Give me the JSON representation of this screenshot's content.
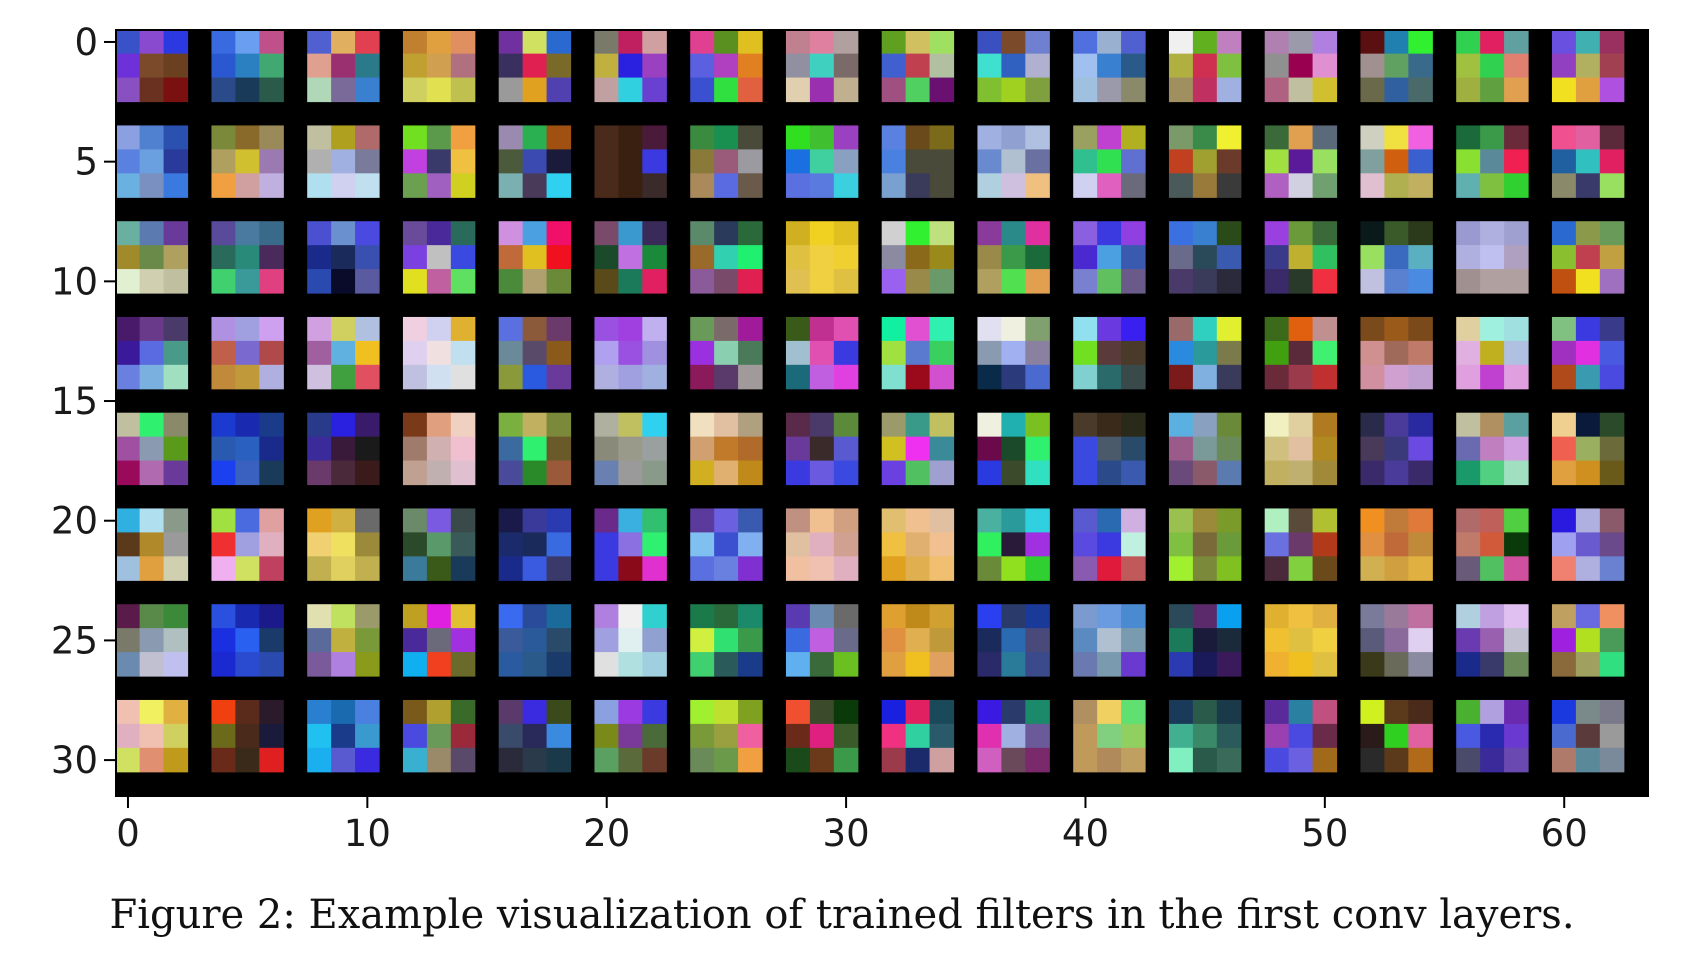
{
  "chart_data": {
    "type": "heatmap",
    "title": "",
    "xlabel": "",
    "ylabel": "",
    "xlim": [
      -0.5,
      63.5
    ],
    "ylim": [
      31.5,
      -0.5
    ],
    "x_ticks": [
      0,
      10,
      20,
      30,
      40,
      50,
      60
    ],
    "y_ticks": [
      0,
      5,
      10,
      15,
      20,
      25,
      30
    ],
    "x_tick_labels": [
      "0",
      "10",
      "20",
      "30",
      "40",
      "50",
      "60"
    ],
    "y_tick_labels": [
      "0",
      "5",
      "10",
      "15",
      "20",
      "25",
      "30"
    ],
    "grid": false,
    "background_color": "#000000",
    "filter_grid": {
      "rows": 8,
      "cols": 16,
      "filter_size": 3,
      "pixel_cells_per_filter": 4
    },
    "description_note": "",
    "filters": [
      [
        "#3a52c8,#8a4ad0,#2a3ae0,#6e30d8,#7a4a2a,#6a4020,#8850c0,#6a3020,#7a1010",
        "#3a6ae0,#6a9ef0,#c0508a,#2a58d0,#2a80c0,#40a870,#2a4a8a,#1a3a5a,#2a5a4a",
        "#5060d0,#e0b060,#e04050,#e0a090,#9a3070,#2a7a8a,#b0d8b8,#7a6a9a,#3a80d0",
        "#c08030,#e0a040,#e09060,#c0a030,#d0a050,#b07080,#d0d060,#e0e050,#c0c050",
        "#7030a0,#d0e060,#2a6ad0,#3a3060,#e02050,#7a6a2a,#9a9a9a,#e0a020,#5040b0",
        "#7a7a6a,#c02060,#d0a0a0,#c0b040,#2a20e0,#9a40c0,#c0a0a0,#30d0e0,#6a40d0",
        "#e04090,#5a9020,#e0c020,#5a60e0,#b040c0,#e08020,#3a50d0,#30e040,#e06040",
        "#c08090,#e080a0,#b0a0a0,#9090a0,#40d0c0,#7a6a6a,#e0d0b0,#9a30b0,#c0b090",
        "#60a020,#d0c060,#a0e060,#4060d0,#c04050,#b0c0a0,#a05080,#50d060,#6a1070",
        "#3a50c0,#7a4a2a,#7080d0,#40e0d0,#3060c0,#b0b0d0,#80c030,#a0d020,#80a040",
        "#5070e0,#9ab0d0,#5060d0,#a0c0f0,#3a80d0,#2a5a8a,#a0c0e0,#9a9aaa,#8a8a6a",
        "#f0f0f0,#60b020,#c080c0,#b0b040,#d03050,#80c040,#a09060,#c03060,#a0b0e0",
        "#b080b0,#9a9aaa,#b080e0,#909090,#9a0050,#e090d0,#b06080,#c0c0a0,#d0c030",
        "#5a1010,#2080b0,#30f030,#a09090,#60a060,#3a6a8a,#6a6a4a,#3060a0,#4a6a6a",
        "#30d050,#e02060,#60a0a0,#a0c040,#30d050,#e08070,#a0b040,#60a040,#e0a050",
        "#6a50e0,#40b0b0,#9a3060,#9040c0,#b0b060,#a04050,#f0e020,#e0a040,#b050e0"
      ],
      [
        "#8aa0e0,#5080d0,#2a50b0,#5a80e0,#6aa0e0,#2a3a9a,#6ab0e0,#7a90c0,#3a7ae0",
        "#7a8a3a,#8a6a2a,#9a8a5a,#b0a060,#d0c030,#9a7ab0,#f0a040,#d0a0a0,#c0b0e0",
        "#c0c0a0,#b0a020,#b06a6a,#b0b0b0,#a0b0e0,#7a7a9a,#b0e0f0,#d0d0f0,#c0e0f0",
        "#70e020,#5a9a4a,#f0a040,#c040e0,#3a3a6a,#f0c040,#6aa050,#a060c0,#d0d020",
        "#9a8ab0,#2ab050,#a05010,#4a5a3a,#3a4ab0,#1a1a3a,#7ab0b0,#4a3a5a,#30d0f0",
        "#4a2a1a,#3a2010,#4a1a3a,#4a2a1a,#3a2010,#3a3ae0,#4a2a1a,#3a2010,#3a2a2a",
        "#3a8a40,#1a9050,#4a4a3a,#8a7a3a,#9a5a7a,#9a9aa0,#aa8a5a,#5a6ae0,#6a5a4a",
        "#30e020,#40c030,#9a40c0,#1a70e0,#40d0a0,#8aa0c0,#5a70e0,#5a7ae0,#3ad0e0",
        "#5a80e0,#6a4a1a,#7a6a1a,#4a80e0,#4a4a3a,#4a4a3a,#7aa0d0,#3a3a5a,#4a4a3a",
        "#a0b0e0,#90a0d0,#b0c0e0,#6a8ad0,#b0c0d0,#6a70a0,#b0d0e0,#d0c0e0,#f0c080",
        "#9aa060,#c040d0,#b0b020,#30c090,#30e050,#6070d0,#d0d0f0,#e060c0,#6a6a7a",
        "#7a9a6a,#3a8a4a,#f0f030,#c04020,#a0a030,#6a3a2a,#4a5a5a,#9a7a3a,#3a3a3a",
        "#3a6a3a,#e0a050,#5a6a7a,#a0e040,#5a1a9a,#9ae060,#b060c0,#d0d0e0,#70a070",
        "#d0d0c0,#f0e040,#f060e0,#80a0a0,#d06010,#3a60d0,#e0c0d0,#b0b050,#c0b060",
        "#1a6a3a,#3a9a4a,#6a2a3a,#8ae030,#5a8a9a,#f02050,#60b0b0,#80c040,#30d030",
        "#f05090,#e060a0,#5a2a3a,#2060a0,#30c0c0,#e02060,#8a8a6a,#3a3a6a,#9ae060"
      ],
      [
        "#6ab0a0,#5a7ab0,#6a3a9a,#a08a2a,#6a8a4a,#b0a060,#e0f0d0,#d0d0b0,#c0c0a0",
        "#5a4a9a,#4a7aa0,#3a6a8a,#2a6a5a,#2a8a7a,#4a2a5a,#40d070,#3a9a9a,#e04080",
        "#4a50d0,#6a90d0,#4a4ae0,#1a2a8a,#1a2a5a,#3a50b0,#2a4ab0,#0a0a2a,#5a5aa0",
        "#6a4a9a,#4a2a9a,#2a6a5a,#7a40e0,#c0c0c0,#3a4ae0,#e0e020,#c060a0,#60e060",
        "#d090e0,#4aa0e0,#f0106a,#c06a3a,#e0c020,#f01020,#4a8a3a,#b0a070,#6a8a3a",
        "#7a4a6a,#3a9ad0,#3a2a5a,#1a4a2a,#c070e0,#1a8a3a,#5a4a1a,#1a7a5a,#e02060",
        "#5a8a6a,#2a3a5a,#2a6a3a,#9a6a2a,#30d0b0,#20f070,#8a5a9a,#7a4a6a,#e02050",
        "#d0b020,#f0d020,#e0c020,#e0c040,#f0d040,#f0d030,#e0c050,#f0d040,#e0c040",
        "#d0d0d0,#30f030,#c0e080,#8a8aa0,#8a6a1a,#9a8a1a,#9a60f0,#9a8a4a,#6a9a6a",
        "#8a3a9a,#2a8a8a,#e030a0,#9a8a4a,#3a9a4a,#1a6a3a,#b0a060,#50e050,#e0a050",
        "#8a60e0,#3a3ae0,#9040e0,#4a2ad0,#4aa0e0,#3a5ab0,#7a80d0,#60c060,#6a5a8a",
        "#3a70e0,#3a80d0,#2a4a1a,#6a6a8a,#2a4a5a,#3a5ab0,#4a3a6a,#3a3a5a,#2a2a3a",
        "#9a40e0,#6a9a3a,#3a6a3a,#3a3a8a,#c0b030,#30c060,#3a2a6a,#2a3a2a,#f03040",
        "#0a1a1a,#3a5a2a,#2a3a1a,#9ae060,#3a6ac0,#5ab0c0,#c0c0e0,#5a80d0,#4a8ae0",
        "#9a9ad0,#b0b0e0,#a0a0d0,#b0b0e0,#c0c0f0,#b0a0c0,#a09090,#b0a0a0,#b0a0a0",
        "#2a6ad0,#8a9a4a,#6a9a5a,#8ac030,#c04050,#c0a040,#c05010,#f0e020,#a070c0"
      ],
      [
        "#4a1a6a,#6a3a8a,#4a3a6a,#3a1a9a,#5a6ae0,#4a9a8a,#6a80e0,#7ab0e0,#a0e0c0",
        "#b090e0,#a0a0e0,#d0a0f0,#c0604a,#7a6ad0,#b04a4a,#c08a3a,#c09a3a,#b0b0e0",
        "#d0a0e0,#d0d060,#b0c0e0,#a060a0,#60b0e0,#f0c020,#d0c0e0,#40a040,#e05060",
        "#f0d0e0,#d0d0f0,#e0b030,#e0d0f0,#f0e0e0,#c0e0f0,#c0c0e0,#d0e0f0,#e0e0e0",
        "#5a70e0,#8a5a3a,#6a3a6a,#6a8a9a,#5a4a6a,#8a5a1a,#8a9a3a,#2a5ae0,#6a3a9a",
        "#9a50e0,#a040e0,#c0b0f0,#b0a0f0,#9a50e0,#a090e0,#b0b0e0,#a0a0e0,#a0b0e0",
        "#6a9a5a,#7a6a6a,#a01a9a,#9a30e0,#8ad0b0,#4a7a5a,#8a1a5a,#5a3a6a,#a09a9a",
        "#3a5a1a,#c03090,#e050b0,#a0c0d0,#e050b0,#3a3ae0,#1a6a7a,#c060e0,#e040e0",
        "#10f0a0,#e050d0,#30f0b0,#a0e040,#5a7ad0,#3ad060,#80e0d0,#9a0a1a,#d050d0",
        "#e0e0f0,#f0f0e0,#80a070,#8a9ab0,#a0b0f0,#8a80a0,#0a2a4a,#2a3a7a,#4a6ad0",
        "#90e0f0,#6a3ae0,#3a20f0,#70e020,#5a3a3a,#4a3a2a,#80d0d0,#2a6a6a,#3a4a4a",
        "#9a6a6a,#30d0c0,#e0f030,#2a8ae0,#2a9a9a,#7a7a4a,#7a1a1a,#80b0e0,#3a3a5a",
        "#3a6a1a,#e06010,#c09090,#40a010,#5a2a3a,#40f070,#6a2a3a,#9a3a4a,#c03030",
        "#7a4a1a,#9a5a1a,#7a4a1a,#d09090,#a06a5a,#c07a6a,#d090a0,#d0a0d0,#c0a0d0",
        "#e0d0a0,#a0f0e0,#a0e0e0,#e0b0e0,#c0b020,#b0c0e0,#e0a0e0,#c040d0,#e0a0e0",
        "#80c080,#3a3ae0,#3a3a8a,#a030c0,#e030e0,#4a5ae0,#b04a1a,#3a9ab0,#4a4ae0"
      ],
      [
        "#c0c0a0,#30f070,#8a8a6a,#a050a0,#8a9ab0,#5a9a1a,#9a0a5a,#b06ab0,#6a3a9a",
        "#1a3ad0,#1a2ab0,#1a3a8a,#2a5ab0,#2a60c0,#1a2a8a,#1a40f0,#3a60c0,#1a3a5a",
        "#2a3a8a,#2a20e0,#3a1a6a,#3a2a9a,#3a1a3a,#1a1a1a,#6a3a6a,#4a2a3a,#3a1a1a",
        "#7a3a1a,#e0a080,#f0d0c0,#a07a6a,#d0b0b0,#f0c0d0,#c0a090,#c0b0b0,#e0c0d0",
        "#7ab040,#c0b060,#7a8a3a,#3a6aa0,#30f070,#6a5a2a,#4a4a9a,#2a8a2a,#9a5a3a",
        "#b0b0a0,#c0c060,#30d0f0,#8a8a7a,#9a9a8a,#9aa0a0,#6a80b0,#9a9a9a,#8a9a8a",
        "#f0e0c0,#e0c0a0,#b0a080,#d0a070,#c07a2a,#b06a2a,#d0b020,#e0b070,#c08a1a",
        "#5a2a4a,#4a3a6a,#5a8a3a,#6a3a9a,#3a2a2a,#5a5ad0,#3a3ae0,#6a5ae0,#3a4ae0",
        "#9a9a6a,#3a9a8a,#c0c060,#d0c020,#f030f0,#3a8a9a,#6a40e0,#50c060,#a0a0d0",
        "#f0f0e0,#20b0b0,#7ac020,#6a0a4a,#1a4a2a,#30f070,#2a3ae0,#3a4a2a,#30e0c0",
        "#4a3a2a,#3a2a1a,#2a2a1a,#3a4ae0,#4a5a6a,#2a4a6a,#3a4ae0,#2a4a8a,#3a5ab0",
        "#5ab0e0,#8aa0c0,#6a8a3a,#9a5a8a,#7a9a9a,#6a8a5a,#6a4a7a,#8a5a6a,#5a7ab0",
        "#f0f0c0,#e0d0a0,#b07a20,#d0c080,#e0c0a0,#b08a20,#c0b060,#c0b070,#a08a3a",
        "#2a2a4a,#4a3a9a,#2a2aa0,#4a3a5a,#3a3a7a,#6a4ae0,#3a2a6a,#4a3a9a,#3a2a6a",
        "#c0c0a0,#b09060,#5aa0a0,#6a6ab0,#c080c0,#d0a0e0,#1a9a6a,#50d080,#a0e0c0",
        "#f0d090,#0a1a3a,#2a4a2a,#f06050,#9ab060,#6a6a3a,#e0a040,#d09020,#6a5a1a"
      ],
      [
        "#30b0e0,#b0e0f0,#8a9a8a,#5a3a1a,#b08a2a,#9a9a9a,#a0c0e0,#e0a040,#d0d0b0",
        "#a0e040,#4a6ae0,#e0a0a0,#f03030,#a0a0e0,#e0b0c0,#f0b0f0,#d0e060,#c04060",
        "#e0a020,#d0b040,#6a6a6a,#f0d070,#f0e060,#9a8a3a,#c0b050,#e0d060,#c0b050",
        "#6a8a6a,#7a5ae0,#3a4a4a,#2a4a2a,#5a9a6a,#3a5a5a,#3a7a9a,#3a5a1a,#1a3a5a",
        "#1a1a4a,#3a3a9a,#2a3ab0,#1a2a6a,#1a2a5a,#3a6ae0,#1a2a8a,#3a5ae0,#3a3a6a",
        "#6a2a8a,#3ab0e0,#30c070,#3a3ae0,#8a70e0,#30f070,#3a3ae0,#8a0a1a,#e030d0",
        "#5a3a9a,#6a60e0,#3a5ab0,#80c0f0,#3a50d0,#80b0f0,#5a70e0,#6a80e0,#8030d0",
        "#c09080,#f0c090,#d0a080,#e0c0a0,#e0b0c0,#d0a090,#f0c0a0,#f0c0b0,#e0b0c0",
        "#e0c070,#f0c090,#e0c0a0,#f0c040,#e0b070,#f0c090,#e0a020,#e0b050,#f0c070",
        "#4ab0a0,#2a9a9a,#30d0e0,#30f060,#2a1a3a,#a030e0,#6a8a3a,#90e020,#30d030",
        "#5a5ad0,#2a6ab0,#d0b0e0,#5a4ae0,#3a3ae0,#c0f0e0,#8a5ab0,#e01a3a,#c05a5a",
        "#9ac050,#9a8a3a,#7a9a2a,#80c040,#7a6a3a,#6a9a3a,#a0f030,#7a8a3a,#80c020",
        "#b0f0c0,#5a4a3a,#b0c030,#6a70e0,#6a3a6a,#b03a1a,#4a2a3a,#80d040,#6a4a1a",
        "#f09020,#c07a3a,#e07a3a,#e09040,#c06a3a,#c08a3a,#d0b050,#d0a040,#e0b040",
        "#b06a6a,#c0605a,#50d040,#c07a6a,#d05a3a,#0a3a0a,#6a5a7a,#50c060,#d050a0",
        "#2a1ae0,#b0b0e0,#8a5a6a,#a0a0f0,#6a5ad0,#6a4a8a,#f08070,#b0b0e0,#6a80d0"
      ],
      [
        "#5a1a4a,#5a8a4a,#3a8a3a,#7a7a6a,#8a9ab0,#b0c0c0,#6a8ab0,#c0c0d0,#c0c0f0",
        "#2a50e0,#1a2ab0,#1a1a8a,#1a30e0,#2a60f0,#1a3a6a,#1a2ad0,#2a4ad0,#2a4ab0",
        "#e0e0b0,#c0e060,#9a9a6a,#5a6a9a,#c0b040,#7a9a3a,#7a5a9a,#b080e0,#8a9a1a",
        "#c0a020,#e020e0,#e0c030,#4a2a9a,#6a6a7a,#a030e0,#10b0f0,#f04020,#6a6a2a",
        "#3a6af0,#2a4a9a,#1a6a9a,#3a5a9a,#2a5a9a,#2a4a6a,#2a5aa0,#2a5a8a,#1a3a6a",
        "#b080e0,#f0f0f0,#30d0d0,#a0a0e0,#e0f0f0,#90a0d0,#e0e0e0,#b0e0e0,#a0d0e0",
        "#1a7a4a,#2a6a3a,#1a8a6a,#d0f040,#30e070,#3a9a4a,#40d070,#2a5a5a,#1a3a8a",
        "#5a3ab0,#6a8ab0,#6a6a6a,#3a6ae0,#c060e0,#6a6a8a,#60b0f0,#3a6a3a,#6ac020",
        "#e0a030,#c08a1a,#d0a030,#e09040,#e0b050,#c09a3a,#e0a040,#f0c020,#e0a060",
        "#2a40f0,#2a3a6a,#1a3a9a,#1a2a5a,#2a6ab0,#4a4a7a,#2a2a6a,#2a7a9a,#3a4a8a",
        "#7a9ad0,#6a9ae0,#4a8ad0,#5a8ac0,#b0c0d0,#7a9ab0,#6a7ab0,#7a9ab0,#6a3ad0",
        "#2a4a5a,#5a2a6a,#0aa0f0,#1a7a5a,#1a1a3a,#1a2a3a,#2a3ab0,#1a1a5a,#3a1a5a",
        "#e0b030,#f0c040,#e0b040,#f0c030,#e0c040,#f0d040,#f0b030,#f0c020,#e0c040",
        "#7a7a9a,#9a7a9a,#c070a0,#5a5a7a,#8a6a9a,#e0d0f0,#3a3a1a,#6a6a5a,#8a8aa0",
        "#b0d0e0,#c0a0e0,#e0c0f0,#6a3ab0,#9a60b0,#c0c0d0,#1a2a8a,#3a3a6a,#6a8a5a",
        "#c0a060,#6a6ae0,#f09060,#a020e0,#b0e020,#4a9a5a,#8a6a3a,#a0a060,#30e080"
      ],
      [
        "#f0c0b0,#f0f060,#e0b040,#e0b0c0,#f0c0b0,#d0d060,#d0e060,#e09070,#c09a1a",
        "#f04010,#5a2a1a,#2a1a2a,#6a6a1a,#4a2a1a,#1a1a3a,#6a2a1a,#3a2a1a,#e02020",
        "#2a80d0,#1a6ab0,#4a80e0,#20c0f0,#1a3a8a,#3a9ad0,#1ab0f0,#5a5ad0,#3a2ae0",
        "#7a5a1a,#b0a030,#3a6a2a,#4a4ae0,#6a9a5a,#9a2a3a,#3ab0d0,#9a8a6a,#5a4a6a",
        "#5a3a6a,#3a2ae0,#3a4a1a,#3a4a6a,#2a2a5a,#3a8ae0,#2a2a3a,#2a3a4a,#1a3a4a",
        "#8aa0e0,#9a3ae0,#3a3ae0,#7a8a1a,#7a3a9a,#4a6a3a,#5aa060,#5a6a3a,#6a3a2a",
        "#a0f030,#c0e030,#80a020,#7a9a3a,#9aa040,#f060a0,#6a8a5a,#6a9a4a,#f0a040",
        "#f05030,#3a4a2a,#0a3a0a,#6a2a1a,#e02080,#3a5a2a,#1a4a1a,#6a3a1a,#3a9a4a",
        "#1a20e0,#e02060,#1a4a5a,#f03080,#30d0a0,#2a5a6a,#9a3a4a,#1a2a6a,#d0a0a0",
        "#3a1ae0,#2a3a6a,#1a8a6a,#e030b0,#a0b0e0,#6a5a9a,#d060c0,#6a4a5a,#7a2a6a",
        "#b09060,#f0d060,#60e070,#c09a5a,#80d080,#90d060,#c09a5a,#b08a5a,#c0a060",
        "#1a3a5a,#2a5a4a,#1a3a4a,#40b090,#3a8a6a,#2a5a5a,#80f0c0,#2a5a4a,#3a6a5a",
        "#5a2a9a,#2a80a0,#c05080,#9a40b0,#4a4ae0,#6a2a4a,#4a4ae0,#6a60e0,#a06a1a",
        "#d0f020,#5a3a1a,#4a2a1a,#2a1a1a,#30d020,#e060a0,#2a2a2a,#5a3a1a,#b06a1a",
        "#4ab030,#b0a0e0,#6a2ab0,#4a5ae0,#2a2ab0,#6a3ad0,#4a4a6a,#3a2a9a,#6a4ab0",
        "#1a3ae0,#7a8a8a,#7a7a8a,#4a6ad0,#5a3a3a,#9a9a9a,#b07a6a,#5a8a9a,#7a8a9a"
      ]
    ]
  },
  "caption": "Figure 2: Example visualization of trained filters in the first conv layers."
}
